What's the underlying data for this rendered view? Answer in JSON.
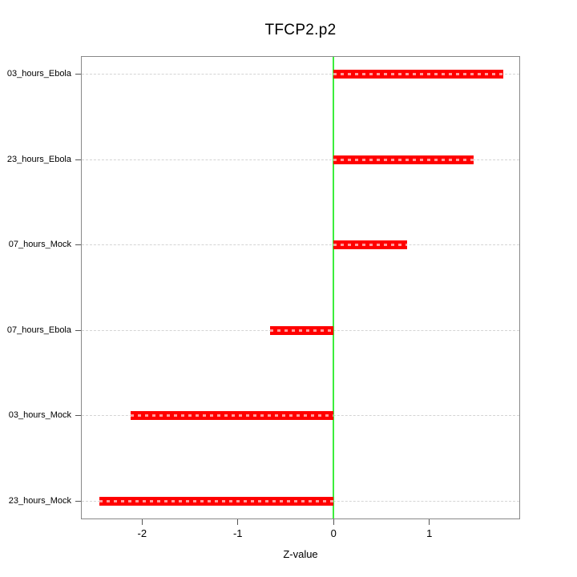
{
  "chart_data": {
    "type": "bar",
    "orientation": "horizontal",
    "title": "TFCP2.p2",
    "xlabel": "Z-value",
    "ylabel": "",
    "categories": [
      "03_hours_Ebola",
      "23_hours_Ebola",
      "07_hours_Mock",
      "07_hours_Ebola",
      "03_hours_Mock",
      "23_hours_Mock"
    ],
    "values": [
      1.77,
      1.46,
      0.77,
      -0.66,
      -2.12,
      -2.45
    ],
    "baseline": 0,
    "xlim": [
      -2.63,
      1.94
    ],
    "xticks": [
      -2,
      -1,
      0,
      1
    ],
    "xtick_labels": [
      "-2",
      "-1",
      "0",
      "1"
    ],
    "grid": "horizontal-dashed",
    "legend": "none",
    "colors": {
      "bar": "#FF0000",
      "bar_dash": "#FF9D9D",
      "zero_line": "#3CEE3C",
      "gridline": "#D4D4D4",
      "box": "#888888",
      "tick": "#555555",
      "text": "#000000",
      "background": "#FFFFFF"
    }
  }
}
